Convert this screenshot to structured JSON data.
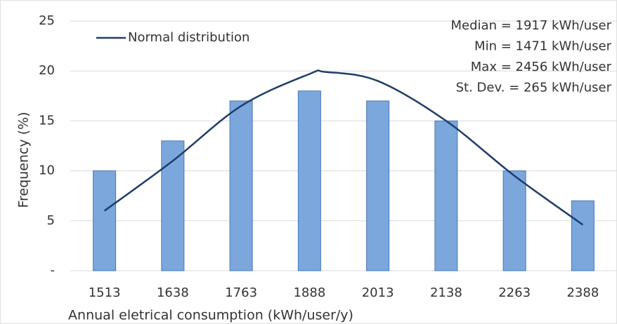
{
  "chart_data": {
    "type": "bar",
    "x_label": "Annual eletrical consumption (kWh/user/y)",
    "y_label": "Frequency (%)",
    "categories": [
      "1513",
      "1638",
      "1763",
      "1888",
      "2013",
      "2138",
      "2263",
      "2388"
    ],
    "series": [
      {
        "type": "bar",
        "color": "#7ba7dd",
        "values": [
          10,
          13,
          17,
          18,
          17,
          15,
          10,
          7
        ]
      },
      {
        "type": "line",
        "name": "Normal distribution",
        "color": "#1f3d6b",
        "x": [
          1513,
          1638,
          1763,
          1888,
          1917,
          2013,
          2138,
          2263,
          2388
        ],
        "values": [
          6,
          11,
          16.5,
          19.7,
          19.9,
          19,
          15,
          9.5,
          4.6
        ]
      }
    ],
    "ylim": [
      0,
      25
    ],
    "yticks": [
      {
        "value": 0,
        "label": "-"
      },
      5,
      10,
      15,
      20,
      25
    ],
    "grid": true,
    "legend": "upper left",
    "annotations": [
      "Median = 1917 kWh/user",
      "Min = 1471 kWh/user",
      "Max = 2456 kWh/user",
      "St. Dev. = 265 kWh/user"
    ]
  }
}
